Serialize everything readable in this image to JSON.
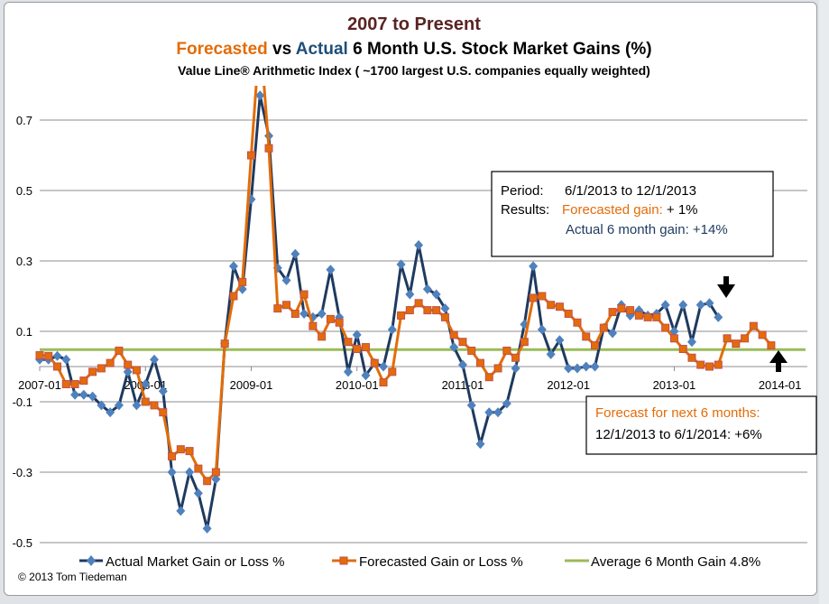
{
  "chart_data": {
    "type": "line",
    "title": "2007 to Present",
    "subtitle_parts": {
      "forecasted": "Forecasted",
      "vs": " vs ",
      "actual": "Actual",
      "rest": " 6 Month U.S. Stock Market Gains (%)"
    },
    "subtitle2": "Value Line® Arithmetic Index ( ~1700 largest U.S. companies equally weighted)",
    "xlabel": "",
    "ylabel": "",
    "x_start": "2007-01",
    "x_step": "monthly",
    "ylim": [
      -0.5,
      0.8
    ],
    "grid": true,
    "legend_position": "bottom",
    "x_tick_labels": [
      "2007-01",
      "2008-01",
      "2009-01",
      "2010-01",
      "2011-01",
      "2012-01",
      "2013-01",
      "2014-01"
    ],
    "y_ticks": [
      0.7,
      0.5,
      0.3,
      0.1,
      -0.1,
      -0.3,
      -0.5
    ],
    "y_tick_labels": [
      "0.7",
      "0.5",
      "0.3",
      "0.1",
      "-0.1",
      "-0.3",
      "-0.5"
    ],
    "series": [
      {
        "name": "Actual Market Gain or Loss %",
        "color": "#1f3a5f",
        "marker_color": "#4f81bd",
        "marker": "diamond",
        "values": [
          0.02,
          0.02,
          0.03,
          0.02,
          -0.08,
          -0.08,
          -0.085,
          -0.11,
          -0.13,
          -0.11,
          -0.015,
          -0.11,
          -0.05,
          0.02,
          -0.07,
          -0.3,
          -0.41,
          -0.3,
          -0.36,
          -0.46,
          -0.32,
          0.065,
          0.285,
          0.22,
          0.475,
          0.77,
          0.655,
          0.28,
          0.245,
          0.32,
          0.15,
          0.14,
          0.15,
          0.275,
          0.14,
          -0.015,
          0.09,
          -0.025,
          0.01,
          0.0,
          0.105,
          0.29,
          0.205,
          0.345,
          0.22,
          0.205,
          0.165,
          0.055,
          0.005,
          -0.11,
          -0.22,
          -0.13,
          -0.13,
          -0.105,
          -0.005,
          0.12,
          0.285,
          0.105,
          0.035,
          0.075,
          -0.005,
          -0.005,
          0.0,
          0.0,
          0.11,
          0.095,
          0.175,
          0.145,
          0.16,
          0.145,
          0.15,
          0.175,
          0.1,
          0.175,
          0.07,
          0.175,
          0.18,
          0.14
        ]
      },
      {
        "name": "Forecasted Gain or Loss %",
        "color": "#e36c09",
        "marker_color": "#e36c09",
        "marker_border": "#c0504d",
        "marker": "square",
        "values": [
          0.032,
          0.03,
          0.0,
          -0.05,
          -0.05,
          -0.04,
          -0.015,
          -0.005,
          0.01,
          0.045,
          0.005,
          -0.01,
          -0.1,
          -0.11,
          -0.13,
          -0.255,
          -0.235,
          -0.24,
          -0.29,
          -0.325,
          -0.3,
          0.065,
          0.2,
          0.24,
          0.6,
          0.95,
          0.62,
          0.165,
          0.175,
          0.15,
          0.205,
          0.115,
          0.085,
          0.135,
          0.125,
          0.07,
          0.05,
          0.055,
          0.01,
          -0.045,
          -0.015,
          0.145,
          0.16,
          0.18,
          0.16,
          0.16,
          0.14,
          0.09,
          0.07,
          0.045,
          0.01,
          -0.03,
          -0.005,
          0.045,
          0.025,
          0.07,
          0.195,
          0.2,
          0.175,
          0.17,
          0.15,
          0.125,
          0.085,
          0.06,
          0.11,
          0.155,
          0.165,
          0.16,
          0.145,
          0.14,
          0.14,
          0.11,
          0.08,
          0.05,
          0.025,
          0.005,
          0.0,
          0.005,
          0.08,
          0.065,
          0.08,
          0.115,
          0.09,
          0.06
        ]
      },
      {
        "name": "Average 6 Month Gain 4.8%",
        "color": "#9bbb59",
        "constant": 0.048
      }
    ],
    "annotations": {
      "results_box": {
        "period_label": "Period:",
        "period_value": "6/1/2013 to 12/1/2013",
        "results_label": "Results:",
        "forecasted_gain": "Forecasted gain:",
        "forecasted_value": " + 1%",
        "actual_gain": "Actual 6 month gain:  +14%"
      },
      "forecast_box": {
        "line1": "Forecast for next 6 months:",
        "line2": "12/1/2013 to 6/1/2014: +6%"
      },
      "arrows": [
        "arrow-down-icon",
        "arrow-up-icon"
      ]
    }
  },
  "colors": {
    "title": "#5a2323",
    "forecast": "#e36c09",
    "actual": "#1f3a5f",
    "average": "#9bbb59",
    "grid": "#8c8c8c"
  },
  "copyright": "©  2013 Tom Tiedeman"
}
